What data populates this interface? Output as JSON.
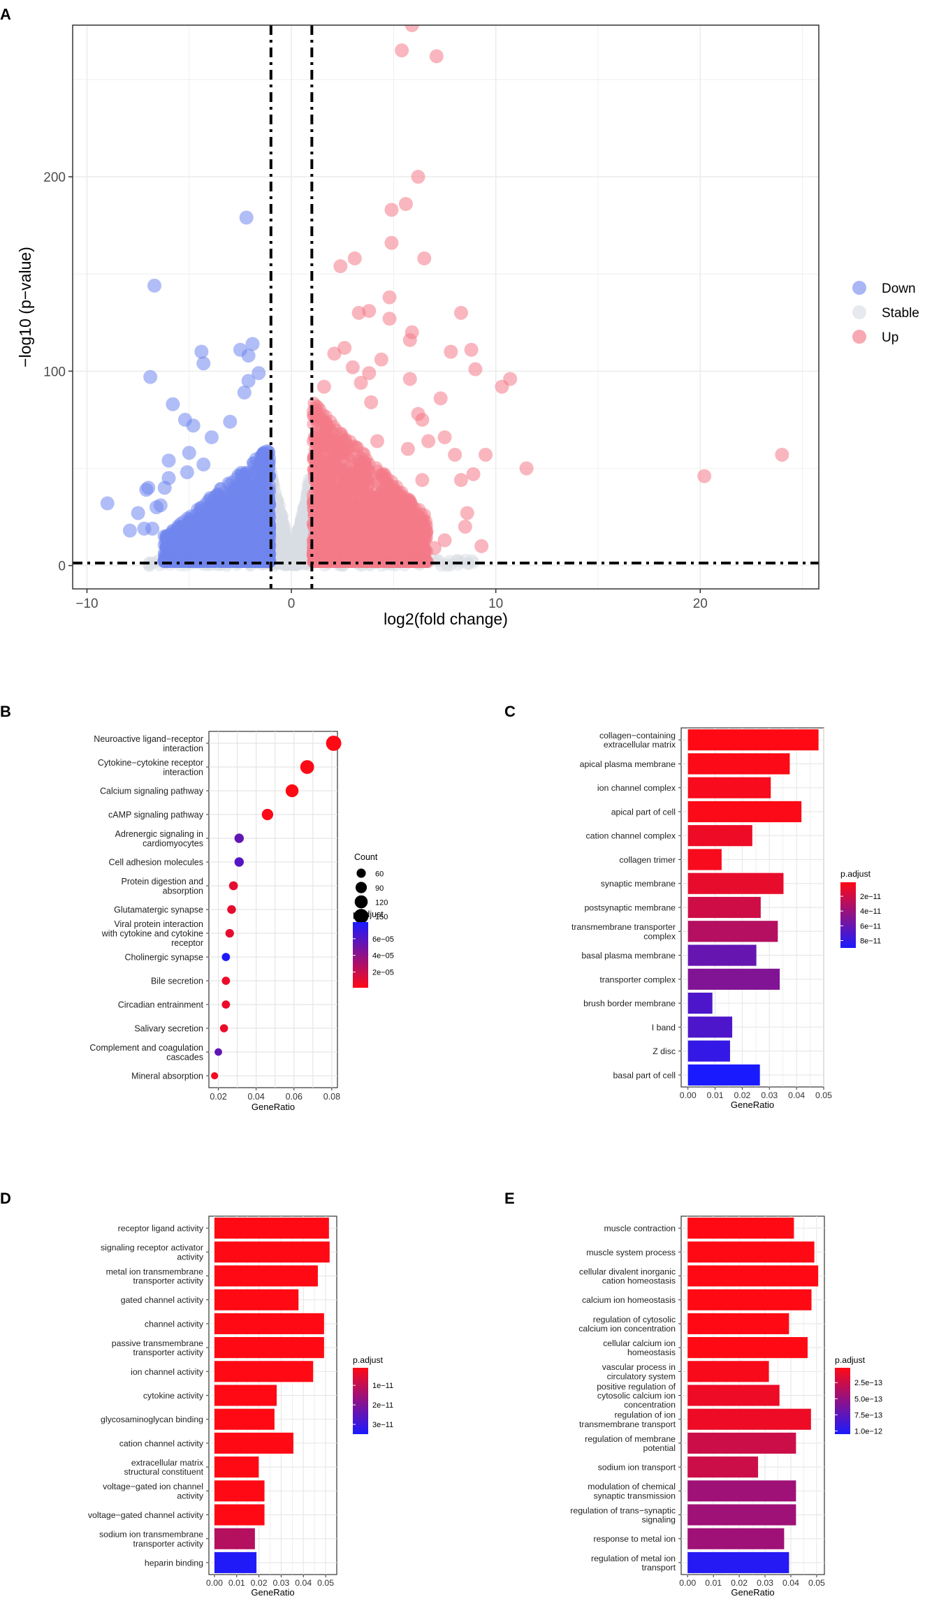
{
  "chart_data": [
    {
      "panel": "A",
      "type": "scatter",
      "xlabel": "log2(fold change)",
      "ylabel": "−log10 (p−value)",
      "xlim": [
        -10.7,
        25.8
      ],
      "ylim": [
        -12,
        278
      ],
      "xticks": [
        -10,
        0,
        10,
        20
      ],
      "xtick_labels": [
        "−10",
        "0",
        "10",
        "20"
      ],
      "yticks": [
        0,
        100,
        200
      ],
      "ytick_labels": [
        "0",
        "100",
        "200"
      ],
      "cutoffs": {
        "log2fc": [
          -1,
          1
        ],
        "neglog10p": 1.3
      },
      "legend": [
        {
          "label": "Down",
          "color": "#7b8ef0"
        },
        {
          "label": "Stable",
          "color": "#d9dde3"
        },
        {
          "label": "Up",
          "color": "#f47a88"
        }
      ],
      "highlighted_points": {
        "Up": [
          [
            5.9,
            278
          ],
          [
            5.4,
            265
          ],
          [
            7.1,
            262
          ],
          [
            6.2,
            200
          ],
          [
            5.6,
            186
          ],
          [
            4.9,
            183
          ],
          [
            4.9,
            166
          ],
          [
            6.5,
            158
          ],
          [
            3.1,
            158
          ],
          [
            2.4,
            154
          ],
          [
            4.8,
            138
          ],
          [
            8.3,
            130
          ],
          [
            3.3,
            130
          ],
          [
            3.8,
            131
          ],
          [
            4.8,
            127
          ],
          [
            5.9,
            120
          ],
          [
            5.8,
            116
          ],
          [
            8.8,
            111
          ],
          [
            7.8,
            110
          ],
          [
            4.4,
            106
          ],
          [
            5.8,
            96
          ],
          [
            9.0,
            101
          ],
          [
            10.7,
            96
          ],
          [
            10.3,
            92
          ],
          [
            7.3,
            86
          ],
          [
            9.5,
            57
          ],
          [
            11.5,
            50
          ],
          [
            20.2,
            46
          ],
          [
            24.0,
            57
          ],
          [
            8.9,
            47
          ],
          [
            8.3,
            44
          ],
          [
            8.6,
            27
          ],
          [
            8.5,
            20
          ],
          [
            9.3,
            10
          ],
          [
            7.5,
            13
          ],
          [
            7.0,
            9
          ],
          [
            5.9,
            12
          ],
          [
            4.5,
            8
          ],
          [
            6.4,
            44
          ],
          [
            5.7,
            60
          ],
          [
            7.5,
            66
          ],
          [
            6.4,
            75
          ],
          [
            6.7,
            64
          ],
          [
            3.9,
            84
          ],
          [
            6.2,
            78
          ],
          [
            8.0,
            57
          ],
          [
            4.2,
            64
          ],
          [
            3.4,
            94
          ],
          [
            2.6,
            112
          ],
          [
            3.8,
            99
          ],
          [
            2.1,
            109
          ],
          [
            1.6,
            92
          ],
          [
            3.0,
            102
          ]
        ],
        "Down": [
          [
            -2.2,
            179
          ],
          [
            -6.7,
            144
          ],
          [
            -1.9,
            114
          ],
          [
            -2.1,
            108
          ],
          [
            -2.5,
            111
          ],
          [
            -1.6,
            99
          ],
          [
            -4.4,
            110
          ],
          [
            -4.3,
            104
          ],
          [
            -6.9,
            97
          ],
          [
            -2.1,
            95
          ],
          [
            -2.3,
            89
          ],
          [
            -5.8,
            83
          ],
          [
            -4.8,
            72
          ],
          [
            -5.2,
            75
          ],
          [
            -3.0,
            74
          ],
          [
            -3.9,
            66
          ],
          [
            -5.0,
            58
          ],
          [
            -6.0,
            54
          ],
          [
            -5.1,
            48
          ],
          [
            -6.0,
            45
          ],
          [
            -6.2,
            40
          ],
          [
            -7.0,
            40
          ],
          [
            -7.1,
            39
          ],
          [
            -6.4,
            31
          ],
          [
            -6.6,
            30
          ],
          [
            -9.0,
            32
          ],
          [
            -7.5,
            27
          ],
          [
            -7.2,
            19
          ],
          [
            -6.8,
            19
          ],
          [
            -7.9,
            18
          ],
          [
            -6.1,
            15
          ],
          [
            -5.2,
            11
          ],
          [
            -4.3,
            52
          ]
        ]
      }
    },
    {
      "panel": "B",
      "type": "scatter",
      "subtype": "dot",
      "xlabel": "GeneRatio",
      "xlim": [
        0.015,
        0.083
      ],
      "xticks": [
        0.02,
        0.04,
        0.06,
        0.08
      ],
      "xtick_labels": [
        "0.02",
        "0.04",
        "0.06",
        "0.08"
      ],
      "categories": [
        [
          "Neuroactive ligand−receptor",
          "interaction"
        ],
        [
          "Cytokine−cytokine receptor",
          "interaction"
        ],
        [
          "Calcium signaling pathway"
        ],
        [
          "cAMP signaling pathway"
        ],
        [
          "Adrenergic signaling in",
          "cardiomyocytes"
        ],
        [
          "Cell adhesion molecules"
        ],
        [
          "Protein digestion and",
          "absorption"
        ],
        [
          "Glutamatergic synapse"
        ],
        [
          "Viral protein interaction",
          "with cytokine and cytokine",
          "receptor"
        ],
        [
          "Cholinergic synapse"
        ],
        [
          "Bile secretion"
        ],
        [
          "Circadian entrainment"
        ],
        [
          "Salivary secretion"
        ],
        [
          "Complement and coagulation",
          "cascades"
        ],
        [
          "Mineral absorption"
        ]
      ],
      "values": [
        0.081,
        0.067,
        0.059,
        0.046,
        0.031,
        0.031,
        0.028,
        0.027,
        0.026,
        0.024,
        0.024,
        0.024,
        0.023,
        0.02,
        0.018
      ],
      "counts": [
        165,
        136,
        118,
        92,
        62,
        62,
        56,
        54,
        52,
        48,
        48,
        48,
        46,
        40,
        36
      ],
      "p_adjust": [
        1e-06,
        2e-06,
        1e-06,
        2e-06,
        5.5e-05,
        6e-05,
        1e-05,
        1e-05,
        1e-05,
        7.8e-05,
        8e-06,
        8e-06,
        8e-06,
        5.5e-05,
        5e-06
      ],
      "size_legend": {
        "title": "Count",
        "labels": [
          "60",
          "90",
          "120",
          "150"
        ],
        "values": [
          60,
          90,
          120,
          150
        ]
      },
      "color_legend": {
        "title": "p.adjust",
        "labels": [
          "6e−05",
          "4e−05",
          "2e−05"
        ],
        "values": [
          6e-05,
          4e-05,
          2e-05
        ],
        "range": [
          1e-06,
          8e-05
        ],
        "low_color": "#ff0a14",
        "high_color": "#1a1aff"
      }
    },
    {
      "panel": "C",
      "type": "bar",
      "orientation": "horizontal",
      "xlabel": "GeneRatio",
      "xlim": [
        -0.0025,
        0.05
      ],
      "xticks": [
        0,
        0.01,
        0.02,
        0.03,
        0.04,
        0.05
      ],
      "xtick_labels": [
        "0.00",
        "0.01",
        "0.02",
        "0.03",
        "0.04",
        "0.05"
      ],
      "categories": [
        [
          "collagen−containing",
          "extracellular matrix"
        ],
        [
          "apical plasma membrane"
        ],
        [
          "ion channel complex"
        ],
        [
          "apical part of cell"
        ],
        [
          "cation channel complex"
        ],
        [
          "collagen trimer"
        ],
        [
          "synaptic membrane"
        ],
        [
          "postsynaptic membrane"
        ],
        [
          "transmembrane transporter",
          "complex"
        ],
        [
          "basal plasma membrane"
        ],
        [
          "transporter complex"
        ],
        [
          "brush border membrane"
        ],
        [
          "I band"
        ],
        [
          "Z disc"
        ],
        [
          "basal part of cell"
        ]
      ],
      "values": [
        0.0481,
        0.0375,
        0.0305,
        0.0418,
        0.0237,
        0.0124,
        0.0352,
        0.0268,
        0.0331,
        0.0252,
        0.0338,
        0.009,
        0.0163,
        0.0155,
        0.0265
      ],
      "p_adjust": [
        1e-12,
        2e-12,
        4e-12,
        2e-12,
        8e-12,
        4e-12,
        1e-11,
        2e-11,
        3e-11,
        6e-11,
        5e-11,
        7e-11,
        7e-11,
        8e-11,
        9e-11
      ],
      "color_legend": {
        "title": "p.adjust",
        "labels": [
          "2e−11",
          "4e−11",
          "6e−11",
          "8e−11"
        ],
        "values": [
          2e-11,
          4e-11,
          6e-11,
          8e-11
        ],
        "range": [
          1e-12,
          9e-11
        ],
        "low_color": "#ff0a14",
        "high_color": "#1a1aff"
      }
    },
    {
      "panel": "D",
      "type": "bar",
      "orientation": "horizontal",
      "xlabel": "GeneRatio",
      "xlim": [
        -0.0025,
        0.055
      ],
      "xticks": [
        0,
        0.01,
        0.02,
        0.03,
        0.04,
        0.05
      ],
      "xtick_labels": [
        "0.00",
        "0.01",
        "0.02",
        "0.03",
        "0.04",
        "0.05"
      ],
      "categories": [
        [
          "receptor ligand activity"
        ],
        [
          "signaling receptor activator",
          "activity"
        ],
        [
          "metal ion transmembrane",
          "transporter activity"
        ],
        [
          "gated channel activity"
        ],
        [
          "channel activity"
        ],
        [
          "passive transmembrane",
          "transporter activity"
        ],
        [
          "ion channel activity"
        ],
        [
          "cytokine activity"
        ],
        [
          "glycosaminoglycan binding"
        ],
        [
          "cation channel activity"
        ],
        [
          "extracellular matrix",
          "structural constituent"
        ],
        [
          "voltage−gated ion channel",
          "activity"
        ],
        [
          "voltage−gated channel activity"
        ],
        [
          "sodium ion transmembrane",
          "transporter activity"
        ],
        [
          "heparin binding"
        ]
      ],
      "values": [
        0.0515,
        0.0518,
        0.0465,
        0.0378,
        0.0493,
        0.0493,
        0.0444,
        0.028,
        0.027,
        0.0355,
        0.0199,
        0.0225,
        0.0225,
        0.0182,
        0.0189
      ],
      "p_adjust": [
        1e-12,
        1e-12,
        1e-12,
        1e-12,
        1e-12,
        1e-12,
        1e-12,
        1e-12,
        1e-12,
        1e-12,
        1e-12,
        1e-12,
        1e-12,
        1.2e-11,
        3.4e-11
      ],
      "color_legend": {
        "title": "p.adjust",
        "labels": [
          "1e−11",
          "2e−11",
          "3e−11"
        ],
        "values": [
          1e-11,
          2e-11,
          3e-11
        ],
        "range": [
          1e-12,
          3.5e-11
        ],
        "low_color": "#ff0a14",
        "high_color": "#1a1aff"
      }
    },
    {
      "panel": "E",
      "type": "bar",
      "orientation": "horizontal",
      "xlabel": "GeneRatio",
      "xlim": [
        -0.0025,
        0.053
      ],
      "xticks": [
        0,
        0.01,
        0.02,
        0.03,
        0.04,
        0.05
      ],
      "xtick_labels": [
        "0.00",
        "0.01",
        "0.02",
        "0.03",
        "0.04",
        "0.05"
      ],
      "categories": [
        [
          "muscle contraction"
        ],
        [
          "muscle system process"
        ],
        [
          "cellular divalent inorganic",
          "cation homeostasis"
        ],
        [
          "calcium ion homeostasis"
        ],
        [
          "regulation of cytosolic",
          "calcium ion concentration"
        ],
        [
          "cellular calcium ion",
          "homeostasis"
        ],
        [
          "vascular process in",
          "circulatory system"
        ],
        [
          "positive regulation of",
          "cytosolic calcium ion",
          "concentration"
        ],
        [
          "regulation of ion",
          "transmembrane transport"
        ],
        [
          "regulation of membrane",
          "potential"
        ],
        [
          "sodium ion transport"
        ],
        [
          "modulation of chemical",
          "synaptic transmission"
        ],
        [
          "regulation of trans−synaptic",
          "signaling"
        ],
        [
          "response to metal ion"
        ],
        [
          "regulation of metal ion",
          "transport"
        ]
      ],
      "values": [
        0.0412,
        0.0491,
        0.0506,
        0.048,
        0.0393,
        0.0465,
        0.0315,
        0.0356,
        0.0478,
        0.042,
        0.0273,
        0.042,
        0.042,
        0.0374,
        0.0393
      ],
      "p_adjust": [
        2e-14,
        2e-14,
        2e-14,
        2e-14,
        2e-14,
        2e-14,
        5e-14,
        1e-13,
        1e-13,
        2.5e-13,
        2.5e-13,
        4.5e-13,
        4.5e-13,
        4.5e-13,
        1e-12
      ],
      "color_legend": {
        "title": "p.adjust",
        "labels": [
          "2.5e−13",
          "5.0e−13",
          "7.5e−13",
          "1.0e−12"
        ],
        "values": [
          2.5e-13,
          5e-13,
          7.5e-13,
          1e-12
        ],
        "range": [
          2e-14,
          1.05e-12
        ],
        "low_color": "#ff0a14",
        "high_color": "#1a1aff"
      }
    }
  ]
}
